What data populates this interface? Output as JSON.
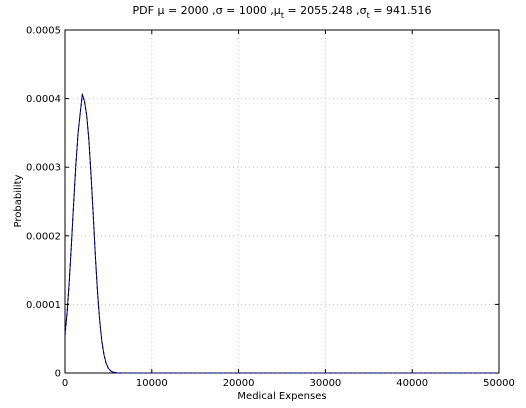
{
  "chart_data": {
    "type": "line",
    "title": "PDF μ = 2000 ,σ = 1000 ,μ",
    "title_parts": {
      "prefix": "PDF μ = 2000 ,σ = 1000 ,μ",
      "sub1": "t",
      "mid": " = 2055.248 ,σ",
      "sub2": "t",
      "suffix": " = 941.516"
    },
    "xlabel": "Medical Expenses",
    "ylabel": "Probability",
    "xlim": [
      0,
      50000
    ],
    "ylim": [
      0,
      0.0005
    ],
    "x_ticks": [
      0,
      10000,
      20000,
      30000,
      40000,
      50000
    ],
    "x_tick_labels": [
      "0",
      "10000",
      "20000",
      "30000",
      "40000",
      "50000"
    ],
    "y_ticks": [
      0,
      0.0001,
      0.0002,
      0.0003,
      0.0004,
      0.0005
    ],
    "y_tick_labels": [
      "0",
      "0.0001",
      "0.0002",
      "0.0003",
      "0.0004",
      "0.0005"
    ],
    "grid": true,
    "series": [
      {
        "color": "#0000ff",
        "style": "solid",
        "x": [
          0,
          250,
          500,
          750,
          1000,
          1250,
          1500,
          1750,
          2000,
          2250,
          2500,
          2750,
          3000,
          3250,
          3500,
          3750,
          4000,
          4250,
          4500,
          4750,
          5000,
          5250,
          5500,
          6000,
          7000,
          10000,
          20000,
          30000,
          40000,
          50000
        ],
        "y": [
          5.6e-05,
          9.01e-05,
          0.0001356,
          0.0001902,
          0.0002486,
          0.0003037,
          0.0003489,
          0.0003788,
          0.0004067,
          0.000396,
          0.0003754,
          0.0003402,
          0.0002885,
          0.0002312,
          0.0001705,
          0.0001175,
          7.6e-05,
          4.59e-05,
          2.61e-05,
          1.38e-05,
          6.8e-06,
          3.2e-06,
          1.4e-06,
          2e-07,
          0.0,
          0.0,
          0.0,
          0.0,
          0.0,
          0.0
        ]
      },
      {
        "color": "#000000",
        "style": "dashed",
        "x": [
          0,
          250,
          500,
          750,
          1000,
          1250,
          1500,
          1750,
          2000,
          2250,
          2500,
          2750,
          3000,
          3250,
          3500,
          3750,
          4000,
          4250,
          4500,
          4750,
          5000,
          5250,
          5500,
          6000,
          7000,
          10000,
          20000,
          30000,
          40000,
          50000
        ],
        "y": [
          5.4e-05,
          8.8e-05,
          0.000134,
          0.000189,
          0.000248,
          0.000303,
          0.000348,
          0.000378,
          0.000406,
          0.0003955,
          0.000375,
          0.00034,
          0.000288,
          0.000231,
          0.00017,
          0.000117,
          7.55e-05,
          4.55e-05,
          2.58e-05,
          1.36e-05,
          6.7e-06,
          3.1e-06,
          1.3e-06,
          2e-07,
          0.0,
          0.0,
          0.0,
          0.0,
          0.0,
          0.0
        ]
      }
    ]
  }
}
